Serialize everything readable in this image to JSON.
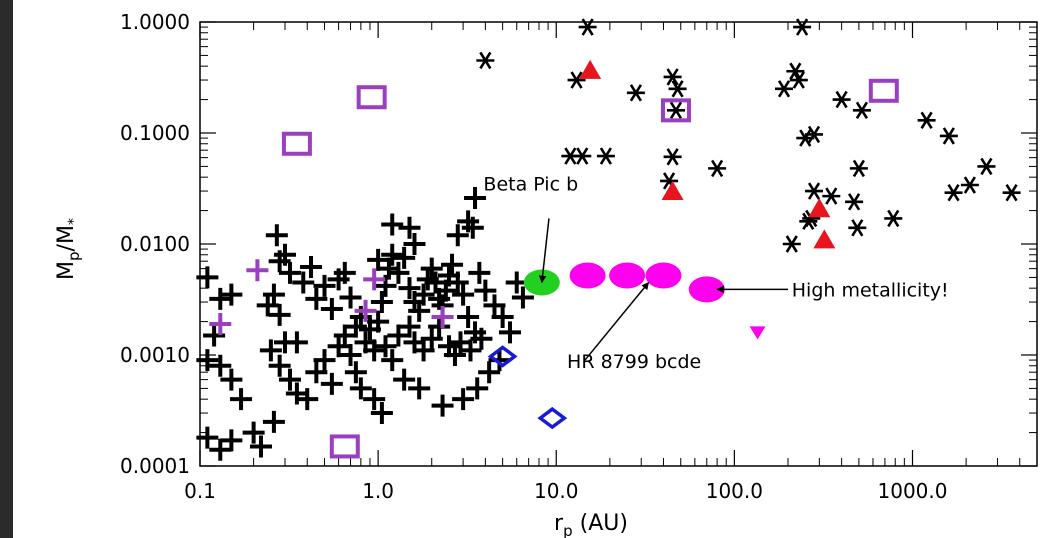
{
  "chart_data": {
    "type": "scatter",
    "x_scale": "log",
    "y_scale": "log",
    "xlim": [
      0.1,
      5000
    ],
    "ylim": [
      0.0001,
      1.0
    ],
    "xlabel": "r (AU)",
    "xlabel_sub": "p",
    "ylabel": "M/M",
    "ylabel_sub": "p",
    "ylabel_sub2": "*",
    "x_ticks": [
      {
        "value": 0.1,
        "label": "0.1"
      },
      {
        "value": 1,
        "label": "1.0"
      },
      {
        "value": 10,
        "label": "10.0"
      },
      {
        "value": 100,
        "label": "100.0"
      },
      {
        "value": 1000,
        "label": "1000.0"
      }
    ],
    "y_ticks": [
      {
        "value": 1.0,
        "label": "1.0000"
      },
      {
        "value": 0.1,
        "label": "0.1000"
      },
      {
        "value": 0.01,
        "label": "0.0100"
      },
      {
        "value": 0.001,
        "label": "0.0010"
      },
      {
        "value": 0.0001,
        "label": "0.0001"
      }
    ],
    "annotations": [
      {
        "text": "Beta Pic b",
        "text_x": 3.9,
        "text_y": 0.035,
        "arrow_from": [
          9.1,
          0.017
        ],
        "arrow_to": [
          8.3,
          0.0045
        ]
      },
      {
        "text": "HR 8799 bcde",
        "text_x": 11.5,
        "text_y": 0.00088,
        "arrow_from": [
          14.5,
          0.0009
        ],
        "arrow_to": [
          33,
          0.0045
        ]
      },
      {
        "text": "High metallicity!",
        "text_x": 210,
        "text_y": 0.0039,
        "arrow_from": [
          200,
          0.0039
        ],
        "arrow_to": [
          80,
          0.0039
        ]
      }
    ],
    "series": [
      {
        "marker": "star",
        "color": "#000000",
        "points": [
          [
            15,
            0.9
          ],
          [
            4,
            0.45
          ],
          [
            13,
            0.3
          ],
          [
            28,
            0.23
          ],
          [
            45,
            0.32
          ],
          [
            48,
            0.25
          ],
          [
            47,
            0.16
          ],
          [
            12,
            0.062
          ],
          [
            14,
            0.062
          ],
          [
            19,
            0.062
          ],
          [
            45,
            0.061
          ],
          [
            43,
            0.037
          ],
          [
            80,
            0.048
          ],
          [
            240,
            0.9
          ],
          [
            220,
            0.36
          ],
          [
            230,
            0.3
          ],
          [
            190,
            0.25
          ],
          [
            250,
            0.09
          ],
          [
            280,
            0.097
          ],
          [
            280,
            0.03
          ],
          [
            270,
            0.017
          ],
          [
            260,
            0.016
          ],
          [
            210,
            0.01
          ],
          [
            350,
            0.027
          ],
          [
            470,
            0.024
          ],
          [
            500,
            0.048
          ],
          [
            490,
            0.014
          ],
          [
            520,
            0.16
          ],
          [
            780,
            0.017
          ],
          [
            1200,
            0.13
          ],
          [
            1600,
            0.094
          ],
          [
            2100,
            0.034
          ],
          [
            1700,
            0.029
          ],
          [
            2600,
            0.05
          ],
          [
            3600,
            0.029
          ],
          [
            400,
            0.2
          ]
        ]
      },
      {
        "marker": "plus",
        "color": "#000000",
        "points": [
          [
            0.11,
            0.005
          ],
          [
            0.15,
            0.0035
          ],
          [
            0.13,
            0.0032
          ],
          [
            0.12,
            0.0015
          ],
          [
            0.11,
            0.0009
          ],
          [
            0.13,
            0.0008
          ],
          [
            0.15,
            0.0006
          ],
          [
            0.17,
            0.0004
          ],
          [
            0.11,
            0.00018
          ],
          [
            0.13,
            0.00014
          ],
          [
            0.15,
            0.00017
          ],
          [
            0.2,
            0.0002
          ],
          [
            0.22,
            0.00015
          ],
          [
            0.26,
            0.00025
          ],
          [
            0.24,
            0.0028
          ],
          [
            0.26,
            0.0035
          ],
          [
            0.28,
            0.0023
          ],
          [
            0.3,
            0.0013
          ],
          [
            0.35,
            0.0013
          ],
          [
            0.3,
            0.008
          ],
          [
            0.27,
            0.012
          ],
          [
            0.28,
            0.007
          ],
          [
            0.32,
            0.0055
          ],
          [
            0.38,
            0.0045
          ],
          [
            0.42,
            0.0062
          ],
          [
            0.45,
            0.0032
          ],
          [
            0.5,
            0.0042
          ],
          [
            0.55,
            0.0026
          ],
          [
            0.6,
            0.0048
          ],
          [
            0.65,
            0.0055
          ],
          [
            0.7,
            0.0033
          ],
          [
            0.75,
            0.0018
          ],
          [
            0.8,
            0.0022
          ],
          [
            0.25,
            0.0011
          ],
          [
            0.28,
            0.0008
          ],
          [
            0.32,
            0.0006
          ],
          [
            0.35,
            0.00045
          ],
          [
            0.4,
            0.0004
          ],
          [
            0.45,
            0.0007
          ],
          [
            0.5,
            0.0009
          ],
          [
            0.55,
            0.00055
          ],
          [
            0.6,
            0.0012
          ],
          [
            0.65,
            0.0015
          ],
          [
            0.7,
            0.001
          ],
          [
            0.75,
            0.0007
          ],
          [
            0.8,
            0.0005
          ],
          [
            0.85,
            0.0013
          ],
          [
            0.9,
            0.0017
          ],
          [
            0.95,
            0.0011
          ],
          [
            1.0,
            0.002
          ],
          [
            1.05,
            0.003
          ],
          [
            1.1,
            0.0042
          ],
          [
            1.15,
            0.006
          ],
          [
            1.2,
            0.008
          ],
          [
            1.0,
            0.0072
          ],
          [
            1.3,
            0.0055
          ],
          [
            1.4,
            0.0075
          ],
          [
            1.5,
            0.004
          ],
          [
            1.6,
            0.003
          ],
          [
            1.7,
            0.0025
          ],
          [
            1.8,
            0.0035
          ],
          [
            1.9,
            0.0048
          ],
          [
            2.0,
            0.006
          ],
          [
            2.1,
            0.0045
          ],
          [
            2.2,
            0.0032
          ],
          [
            2.3,
            0.0028
          ],
          [
            2.4,
            0.0038
          ],
          [
            2.5,
            0.0052
          ],
          [
            2.6,
            0.0065
          ],
          [
            2.8,
            0.0045
          ],
          [
            3.0,
            0.0035
          ],
          [
            3.2,
            0.0022
          ],
          [
            3.5,
            0.0016
          ],
          [
            3.7,
            0.0055
          ],
          [
            4.0,
            0.0038
          ],
          [
            4.5,
            0.0028
          ],
          [
            5.0,
            0.0022
          ],
          [
            6.0,
            0.0045
          ],
          [
            6.5,
            0.0033
          ],
          [
            5.5,
            0.0016
          ],
          [
            4.8,
            0.0009
          ],
          [
            4.2,
            0.0007
          ],
          [
            3.6,
            0.0005
          ],
          [
            3.0,
            0.0004
          ],
          [
            2.3,
            0.00035
          ],
          [
            1.7,
            0.0005
          ],
          [
            1.4,
            0.0006
          ],
          [
            1.2,
            0.0009
          ],
          [
            1.1,
            0.0012
          ],
          [
            1.3,
            0.0015
          ],
          [
            1.5,
            0.0018
          ],
          [
            1.6,
            0.0013
          ],
          [
            1.8,
            0.0011
          ],
          [
            2.0,
            0.0014
          ],
          [
            2.2,
            0.0018
          ],
          [
            2.5,
            0.0012
          ],
          [
            2.7,
            0.001
          ],
          [
            2.9,
            0.0013
          ],
          [
            3.3,
            0.0011
          ],
          [
            3.8,
            0.0014
          ],
          [
            1.2,
            0.015
          ],
          [
            1.5,
            0.014
          ],
          [
            1.6,
            0.01
          ],
          [
            3.5,
            0.026
          ],
          [
            3.2,
            0.016
          ],
          [
            3.4,
            0.014
          ],
          [
            2.8,
            0.012
          ],
          [
            0.95,
            0.0004
          ],
          [
            1.05,
            0.0003
          ]
        ]
      },
      {
        "marker": "plus",
        "color": "#9a3fbf",
        "points": [
          [
            0.21,
            0.0058
          ],
          [
            0.13,
            0.0019
          ],
          [
            0.95,
            0.0048
          ],
          [
            0.85,
            0.0025
          ],
          [
            2.3,
            0.0022
          ]
        ]
      },
      {
        "marker": "square",
        "color": "#9a3fbf",
        "points": [
          [
            0.35,
            0.08
          ],
          [
            0.92,
            0.21
          ],
          [
            47,
            0.16
          ],
          [
            690,
            0.24
          ],
          [
            0.65,
            0.00015
          ]
        ]
      },
      {
        "marker": "diamond",
        "color": "#1a1ad6",
        "points": [
          [
            5.0,
            0.00097
          ],
          [
            9.5,
            0.00027
          ]
        ]
      },
      {
        "marker": "triangle-up",
        "color": "#e8141e",
        "points": [
          [
            15.5,
            0.37
          ],
          [
            45,
            0.03
          ],
          [
            300,
            0.021
          ],
          [
            320,
            0.011
          ]
        ]
      },
      {
        "marker": "circle",
        "color": "#22d022",
        "points": [
          [
            8.3,
            0.0045
          ]
        ]
      },
      {
        "marker": "circle",
        "color": "#ff00ee",
        "points": [
          [
            15,
            0.0052
          ],
          [
            25,
            0.0052
          ],
          [
            40,
            0.0052
          ],
          [
            70,
            0.0039
          ]
        ]
      },
      {
        "marker": "triangle-down",
        "color": "#ff00ee",
        "points": [
          [
            135,
            0.0016
          ]
        ]
      }
    ]
  }
}
